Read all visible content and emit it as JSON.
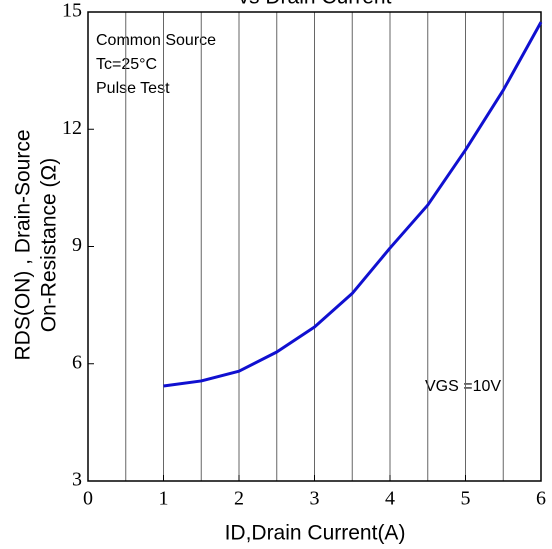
{
  "chart_data": {
    "type": "line",
    "title": "vs Drain Current",
    "x_label": "ID,Drain Current(A)",
    "y_label": [
      "RDS(ON) , Drain-Source",
      "On-Resistance (Ω)"
    ],
    "annotations": [
      "Common Source",
      "Tc=25°C",
      "Pulse Test",
      "VGS =10V"
    ],
    "x": [
      1,
      1.5,
      2,
      2.5,
      3,
      3.5,
      4,
      4.5,
      5,
      5.5,
      6
    ],
    "series": [
      {
        "name": "VGS =10V",
        "color": "#1010d0",
        "values": [
          5.43,
          5.56,
          5.81,
          6.3,
          6.94,
          7.8,
          8.96,
          10.06,
          11.47,
          13.0,
          14.74
        ]
      }
    ],
    "xlim": [
      0,
      6
    ],
    "xticks": [
      0,
      1,
      2,
      3,
      4,
      5,
      6
    ],
    "xgrid": [
      0.5,
      1,
      1.5,
      2,
      2.5,
      3,
      3.5,
      4,
      4.5,
      5,
      5.5
    ],
    "ylim": [
      3,
      15
    ],
    "yticks": [
      3,
      6,
      9,
      12,
      15
    ]
  }
}
